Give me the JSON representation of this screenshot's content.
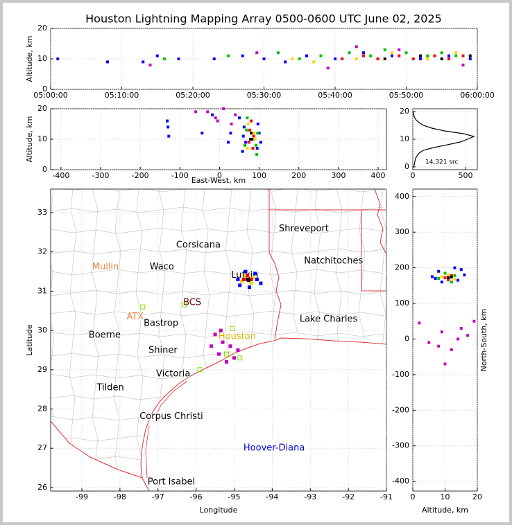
{
  "chart_data": [
    {
      "type": "scatter",
      "title": "Houston Lightning Mapping Array 0500-0600 UTC June 02, 2025",
      "ylabel": "Altitude, km",
      "xlim": [
        0,
        60
      ],
      "xticks": [
        {
          "value": 0,
          "label": "05:00:00"
        },
        {
          "value": 10,
          "label": "05:10:00"
        },
        {
          "value": 20,
          "label": "05:20:00"
        },
        {
          "value": 30,
          "label": "05:30:00"
        },
        {
          "value": 40,
          "label": "05:40:00"
        },
        {
          "value": 50,
          "label": "05:50:00"
        },
        {
          "value": 60,
          "label": "06:00:00"
        }
      ],
      "ylim": [
        0,
        20
      ],
      "yticks": [
        0,
        10,
        20
      ],
      "grid": true,
      "series": [
        {
          "color": "#0000ff",
          "x": [
            1,
            8,
            13,
            15,
            18,
            23,
            27,
            30,
            33,
            36,
            40,
            44,
            48,
            52,
            56,
            59
          ],
          "values": [
            10,
            9,
            9,
            11,
            10,
            10,
            11,
            10,
            9,
            11,
            10,
            12,
            11,
            10,
            11,
            10
          ]
        },
        {
          "color": "#c000c0",
          "x": [
            14,
            29,
            39,
            43,
            49,
            58
          ],
          "values": [
            8,
            12,
            7,
            14,
            13,
            8
          ]
        },
        {
          "color": "#00c000",
          "x": [
            16,
            25,
            32,
            35,
            38,
            42,
            45,
            47,
            50,
            53,
            55,
            57
          ],
          "values": [
            10,
            11,
            12,
            10,
            11,
            12,
            11,
            13,
            12,
            11,
            12,
            11
          ]
        },
        {
          "color": "#ffd700",
          "x": [
            34,
            37,
            43,
            48,
            53,
            57
          ],
          "values": [
            10,
            9,
            10,
            12,
            10,
            12
          ]
        },
        {
          "color": "#ff0000",
          "x": [
            41,
            44,
            46,
            49,
            51,
            54,
            56,
            58
          ],
          "values": [
            10,
            11,
            10,
            11,
            10,
            11,
            10,
            11
          ]
        },
        {
          "color": "#000000",
          "x": [
            47,
            52,
            55,
            59
          ],
          "values": [
            10,
            11,
            10,
            11
          ]
        }
      ]
    },
    {
      "type": "scatter",
      "xlabel": "East-West, km",
      "ylabel": "Altitude, km",
      "xlim": [
        -426,
        421
      ],
      "xticks": [
        -400,
        -300,
        -200,
        -100,
        0,
        100,
        200,
        300,
        400
      ],
      "ylim": [
        0,
        20
      ],
      "yticks": [
        0,
        10,
        20
      ],
      "grid": true,
      "series": [
        {
          "color": "#c000c0",
          "x": [
            -30,
            -10,
            10,
            40,
            -60,
            -5,
            30
          ],
          "values": [
            19,
            17,
            20,
            18,
            19,
            16,
            15
          ]
        },
        {
          "color": "#0000ff",
          "x": [
            58,
            62,
            66,
            95,
            100,
            60,
            97,
            -130,
            -132,
            -128,
            -44,
            22,
            28,
            -18,
            50,
            104
          ],
          "values": [
            6,
            14,
            9,
            7,
            12,
            11,
            15,
            14,
            16,
            11,
            12,
            9,
            12,
            18,
            17,
            9
          ]
        },
        {
          "color": "#00c000",
          "x": [
            64,
            68,
            92,
            96,
            70,
            94
          ],
          "values": [
            8,
            13,
            8,
            12,
            17,
            5
          ]
        },
        {
          "color": "#ffd700",
          "x": [
            70,
            88,
            72,
            90
          ],
          "values": [
            7,
            12,
            15,
            10
          ]
        },
        {
          "color": "#ff0000",
          "x": [
            74,
            86,
            76,
            84,
            80
          ],
          "values": [
            9,
            11,
            13,
            7,
            16
          ]
        },
        {
          "color": "#000000",
          "x": [
            78,
            82,
            80
          ],
          "values": [
            10,
            10,
            12
          ]
        }
      ]
    },
    {
      "type": "line",
      "annotation": "14,321 src",
      "color": "#000000",
      "xlim": [
        0,
        612
      ],
      "xticks": [
        0,
        500
      ],
      "ylim": [
        -1,
        21
      ],
      "yticks": [
        0,
        10,
        20
      ],
      "grid": true,
      "x": [
        10,
        15,
        20,
        25,
        40,
        60,
        100,
        200,
        330,
        450,
        520,
        580,
        480,
        300,
        180,
        100,
        60,
        30,
        15,
        8,
        3
      ],
      "values": [
        0,
        1,
        2,
        3,
        4,
        5,
        6,
        7,
        8,
        9,
        10,
        11,
        12,
        13,
        14,
        15,
        16,
        17,
        18,
        19,
        20
      ]
    },
    {
      "type": "map",
      "xlabel": "Longitude",
      "ylabel": "Latitude",
      "xlim": [
        -99.82,
        -91
      ],
      "xticks": [
        -99,
        -98,
        -97,
        -96,
        -95,
        -94,
        -93,
        -92,
        -91
      ],
      "ylim": [
        25.91,
        33.6
      ],
      "yticks": [
        26,
        27,
        28,
        29,
        30,
        31,
        32,
        33
      ],
      "grid": true,
      "series": [
        {
          "color": "#c000c0",
          "x": [
            -95.3,
            -95.4,
            -95.1,
            -95.5,
            -95.2,
            -94.9,
            -95.6,
            -95.0,
            -95.35
          ],
          "values": [
            29.7,
            29.4,
            29.6,
            29.9,
            29.2,
            29.5,
            29.6,
            29.3,
            30.0
          ]
        },
        {
          "color": "#0000ff",
          "x": [
            -94.9,
            -94.4,
            -94.85,
            -94.45,
            -94.7,
            -94.6,
            -94.3
          ],
          "values": [
            31.3,
            31.3,
            31.15,
            31.45,
            31.5,
            31.1,
            31.2
          ]
        },
        {
          "color": "#ffd700",
          "x": [
            -94.8,
            -94.5,
            -94.7,
            -94.55
          ],
          "values": [
            31.25,
            31.35,
            31.4,
            31.2
          ]
        },
        {
          "color": "#ff0000",
          "x": [
            -94.75,
            -94.55,
            -94.65
          ],
          "values": [
            31.3,
            31.3,
            31.4
          ]
        },
        {
          "color": "#000000",
          "x": [
            -94.65,
            -94.62
          ],
          "values": [
            31.3,
            31.28
          ]
        }
      ],
      "stations": {
        "color": "#7fdf00",
        "x": [
          -97.4,
          -96.3,
          -95.05,
          -95.9,
          -94.85,
          -95.2
        ],
        "values": [
          30.6,
          30.65,
          30.05,
          29.0,
          29.3,
          29.4
        ]
      },
      "places": [
        {
          "name": "Shreveport",
          "lon": -93.17,
          "lat": 32.59,
          "color": "#000000"
        },
        {
          "name": "Corsicana",
          "lon": -95.94,
          "lat": 32.17,
          "color": "#000000"
        },
        {
          "name": "Natchitoches",
          "lon": -92.39,
          "lat": 31.77,
          "color": "#000000"
        },
        {
          "name": "Mullin",
          "lon": -98.38,
          "lat": 31.62,
          "color": "#f08040"
        },
        {
          "name": "Waco",
          "lon": -96.9,
          "lat": 31.62,
          "color": "#000000"
        },
        {
          "name": "Lufkin",
          "lon": -94.72,
          "lat": 31.4,
          "color": "#000000"
        },
        {
          "name": "BCS",
          "lon": -96.1,
          "lat": 30.71,
          "color": "#600000"
        },
        {
          "name": "ATX",
          "lon": -97.6,
          "lat": 30.35,
          "color": "#f08040"
        },
        {
          "name": "Bastrop",
          "lon": -96.92,
          "lat": 30.18,
          "color": "#000000"
        },
        {
          "name": "Lake Charles",
          "lon": -92.52,
          "lat": 30.28,
          "color": "#000000"
        },
        {
          "name": "Boerne",
          "lon": -98.4,
          "lat": 29.88,
          "color": "#000000"
        },
        {
          "name": "Houston",
          "lon": -94.92,
          "lat": 29.84,
          "color": "#e0b000"
        },
        {
          "name": "Shiner",
          "lon": -96.87,
          "lat": 29.49,
          "color": "#000000"
        },
        {
          "name": "Victoria",
          "lon": -96.6,
          "lat": 28.89,
          "color": "#000000"
        },
        {
          "name": "Tilden",
          "lon": -98.25,
          "lat": 28.54,
          "color": "#000000"
        },
        {
          "name": "Corpus Christi",
          "lon": -96.65,
          "lat": 27.81,
          "color": "#000000"
        },
        {
          "name": "Hoover-Diana",
          "lon": -93.95,
          "lat": 27.0,
          "color": "#0000dd"
        },
        {
          "name": "Port Isabel",
          "lon": -96.65,
          "lat": 26.14,
          "color": "#000000"
        }
      ]
    },
    {
      "type": "scatter",
      "xlabel": "Altitude, km",
      "ylabel": "North-South, km",
      "xlim": [
        0,
        20
      ],
      "xticks": [
        0,
        10,
        20
      ],
      "ylim": [
        -427,
        421
      ],
      "yticks": [
        -400,
        -300,
        -200,
        -100,
        0,
        100,
        200,
        300,
        400
      ],
      "grid": true,
      "series": [
        {
          "color": "#c000c0",
          "x": [
            2,
            5,
            9,
            12,
            15,
            17,
            19,
            10,
            14,
            8
          ],
          "values": [
            45,
            -10,
            20,
            -30,
            30,
            10,
            50,
            -70,
            0,
            -20
          ]
        },
        {
          "color": "#0000ff",
          "x": [
            6,
            8,
            14,
            16,
            9,
            13,
            15,
            7
          ],
          "values": [
            175,
            190,
            165,
            180,
            160,
            200,
            195,
            170
          ]
        },
        {
          "color": "#00c000",
          "x": [
            8,
            10,
            13,
            12
          ],
          "values": [
            170,
            185,
            178,
            160
          ]
        },
        {
          "color": "#ffd700",
          "x": [
            9,
            11,
            13
          ],
          "values": [
            175,
            180,
            168
          ]
        },
        {
          "color": "#ff0000",
          "x": [
            10,
            12,
            11
          ],
          "values": [
            172,
            178,
            166
          ]
        },
        {
          "color": "#000000",
          "x": [
            11,
            12
          ],
          "values": [
            172,
            174
          ]
        }
      ]
    }
  ]
}
